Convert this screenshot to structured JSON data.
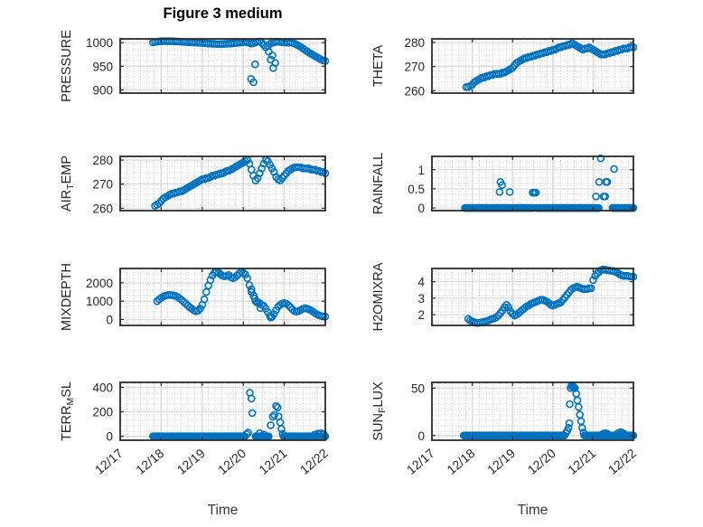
{
  "figure": {
    "title": "Figure 3 medium",
    "xlabel": "Time",
    "x_tick_labels": [
      "12/17",
      "12/18",
      "12/19",
      "12/20",
      "12/21",
      "12/22"
    ],
    "marker_color": "#0072BD",
    "axis_color": "#2b2b2b",
    "tick_label_color": "#262626",
    "grid_color": "#d9d9d9",
    "minor_grid_color": "#cacaca",
    "background": "#ffffff"
  },
  "chart_data": [
    {
      "type": "scatter",
      "name": "pressure",
      "ylabel": "PRESSURE",
      "ylabel_parts": [
        [
          "PRESSURE",
          false
        ]
      ],
      "yticks": [
        900,
        950,
        1000
      ],
      "ylim": [
        893,
        1008
      ],
      "xlim_days": [
        0,
        5
      ],
      "band": {
        "x0": 0.8,
        "dx": 0.05,
        "y": [
          1000.5,
          1001.5,
          1002,
          1002.5,
          1003,
          1003,
          1003,
          1003,
          1003,
          1003,
          1003,
          1002.5,
          1002.5,
          1002,
          1002,
          1001.5,
          1001.5,
          1001,
          1001,
          1000.5,
          1000.5,
          1000,
          1000,
          999.5,
          999.5,
          999,
          998.5,
          998,
          998,
          997.5,
          997.5,
          997,
          997,
          997,
          997,
          997.5,
          997.5,
          998,
          998,
          998.5,
          999,
          999.5,
          1000,
          1000.5,
          1001,
          1001.5,
          1001,
          999.5,
          998,
          999,
          1001,
          1002,
          1002.5,
          1000,
          995,
          990,
          993,
          997,
          1000,
          1001,
          1001.5,
          1002,
          1001.5,
          1001,
          1000.5,
          1000.5,
          1000,
          1000,
          999.5,
          998,
          996,
          993.5,
          991,
          988,
          985,
          982,
          979,
          976.5,
          974,
          971.5,
          969,
          966.5,
          964,
          962,
          961
        ]
      },
      "zero_runs": [],
      "extra": [
        [
          3.19,
          923
        ],
        [
          3.25,
          916
        ],
        [
          3.29,
          954
        ],
        [
          3.62,
          981
        ],
        [
          3.67,
          964
        ],
        [
          3.71,
          973
        ],
        [
          3.73,
          946
        ],
        [
          3.78,
          957
        ]
      ]
    },
    {
      "type": "scatter",
      "name": "theta",
      "ylabel": "THETA",
      "ylabel_parts": [
        [
          "THETA",
          false
        ]
      ],
      "yticks": [
        260,
        270,
        280
      ],
      "ylim": [
        259,
        281.5
      ],
      "xlim_days": [
        0,
        5
      ],
      "band": {
        "x0": 0.85,
        "dx": 0.05,
        "y": [
          261.5,
          261.5,
          262,
          262.5,
          263.5,
          264,
          264.5,
          265,
          265.5,
          265.5,
          266,
          266,
          266.5,
          266.5,
          267,
          267,
          267,
          267,
          267.5,
          267.5,
          268,
          268.5,
          269,
          269.5,
          270.5,
          271.5,
          272,
          272.5,
          273,
          273.5,
          273.5,
          274,
          274,
          274.5,
          274.5,
          275,
          275,
          275.5,
          275.5,
          276,
          276,
          276.5,
          276.5,
          277,
          277,
          277.5,
          278,
          278,
          278.5,
          278.5,
          279,
          279,
          279.5,
          279.5,
          279,
          278.5,
          278,
          277.5,
          277,
          277.5,
          277.5,
          278,
          277.5,
          277,
          276.5,
          276,
          275.5,
          275,
          275,
          275,
          275.5,
          275.5,
          276,
          276,
          276.5,
          276.5,
          277,
          277,
          277.5,
          277.5,
          277.5,
          278,
          278,
          278
        ]
      },
      "zero_runs": [],
      "extra": []
    },
    {
      "type": "scatter",
      "name": "air_temp",
      "ylabel": "AIR_TEMP",
      "ylabel_parts": [
        [
          "AIR",
          false
        ],
        [
          "T",
          true
        ],
        [
          "EMP",
          false
        ]
      ],
      "yticks": [
        260,
        270,
        280
      ],
      "ylim": [
        259,
        281.5
      ],
      "xlim_days": [
        0,
        5
      ],
      "band": {
        "x0": 0.85,
        "dx": 0.05,
        "y": [
          261,
          261.5,
          262,
          263,
          264,
          264.5,
          265,
          265.5,
          266,
          266,
          266.5,
          266.5,
          267,
          267,
          267.5,
          268,
          268.5,
          269,
          269.5,
          270,
          270.5,
          271,
          271.5,
          272,
          272,
          272.5,
          272.5,
          273,
          273.5,
          273.5,
          274,
          274,
          274.5,
          274.5,
          275,
          275.5,
          275.5,
          276,
          276.5,
          277,
          277.5,
          278,
          278.5,
          279,
          279.5,
          280,
          278.5,
          276,
          273.5,
          271.5,
          272.5,
          274.5,
          276.5,
          278.5,
          280,
          279.5,
          278,
          276.5,
          275,
          273,
          272,
          271.5,
          272.5,
          273.5,
          274.5,
          275.5,
          276,
          276.5,
          277,
          277,
          277,
          277,
          276.5,
          276.5,
          276.5,
          276.5,
          276,
          276,
          276,
          275.5,
          275.5,
          275,
          275,
          274.5
        ]
      },
      "zero_runs": [],
      "extra": []
    },
    {
      "type": "scatter",
      "name": "rainfall",
      "ylabel": "RAINFALL",
      "ylabel_parts": [
        [
          "RAINFALL",
          false
        ]
      ],
      "yticks": [
        0,
        0.5,
        1
      ],
      "ylim": [
        -0.07,
        1.35
      ],
      "xlim_days": [
        0,
        5
      ],
      "band": null,
      "zero_runs": [
        [
          0.82,
          2.5
        ],
        [
          2.58,
          4.15
        ],
        [
          4.48,
          5.0
        ]
      ],
      "extra": [
        [
          1.68,
          0.42
        ],
        [
          1.7,
          0.68
        ],
        [
          1.74,
          0.6
        ],
        [
          1.93,
          0.42
        ],
        [
          2.5,
          0.4
        ],
        [
          2.54,
          0.4
        ],
        [
          2.58,
          0.4
        ],
        [
          4.07,
          0.3
        ],
        [
          4.15,
          0.68
        ],
        [
          4.19,
          1.3
        ],
        [
          4.26,
          0.3
        ],
        [
          4.3,
          0.3
        ],
        [
          4.32,
          0.68
        ],
        [
          4.35,
          0.68
        ],
        [
          4.52,
          1.02
        ]
      ]
    },
    {
      "type": "scatter",
      "name": "mixdepth",
      "ylabel": "MIXDEPTH",
      "ylabel_parts": [
        [
          "MIXDEPTH",
          false
        ]
      ],
      "yticks": [
        0,
        1000,
        2000
      ],
      "ylim": [
        -320,
        2780
      ],
      "xlim_days": [
        0,
        5
      ],
      "band": {
        "x0": 0.9,
        "dx": 0.05,
        "y": [
          1000,
          1100,
          1180,
          1250,
          1300,
          1330,
          1340,
          1330,
          1320,
          1280,
          1230,
          1150,
          1060,
          960,
          860,
          760,
          660,
          580,
          500,
          450,
          480,
          600,
          800,
          1100,
          1500,
          1850,
          2150,
          2400,
          2550,
          2600,
          2550,
          2450,
          2380,
          2350,
          2380,
          2420,
          2300,
          2250,
          2300,
          2400,
          2500,
          2600,
          2550,
          2450,
          2250,
          1870,
          1500,
          1300,
          1000,
          950,
          900,
          800,
          745,
          590,
          400,
          200,
          150,
          300,
          510,
          700,
          800,
          870,
          900,
          860,
          780,
          670,
          550,
          460,
          430,
          460,
          520,
          580,
          620,
          600,
          560,
          500,
          430,
          350,
          280,
          230,
          190,
          170,
          160
        ]
      },
      "zero_runs": [],
      "extra": [
        [
          3.2,
          1650
        ],
        [
          3.28,
          1150
        ],
        [
          3.34,
          920
        ],
        [
          3.42,
          620
        ],
        [
          3.67,
          110
        ]
      ]
    },
    {
      "type": "scatter",
      "name": "h2omixra",
      "ylabel": "H2OMIXRA",
      "ylabel_parts": [
        [
          "H2OMIXRA",
          false
        ]
      ],
      "yticks": [
        2,
        3,
        4
      ],
      "ylim": [
        1.35,
        4.8
      ],
      "xlim_days": [
        0,
        5
      ],
      "band": {
        "x0": 0.9,
        "dx": 0.05,
        "y": [
          1.75,
          1.65,
          1.6,
          1.55,
          1.5,
          1.5,
          1.52,
          1.55,
          1.58,
          1.6,
          1.65,
          1.7,
          1.75,
          1.78,
          1.85,
          1.95,
          2.1,
          2.25,
          2.45,
          2.6,
          2.45,
          2.2,
          2.05,
          1.95,
          2.0,
          2.1,
          2.2,
          2.3,
          2.4,
          2.5,
          2.55,
          2.65,
          2.7,
          2.75,
          2.8,
          2.85,
          2.9,
          2.9,
          2.85,
          2.8,
          2.7,
          2.6,
          2.55,
          2.6,
          2.65,
          2.7,
          2.75,
          2.9,
          3.05,
          3.2,
          3.35,
          3.5,
          3.6,
          3.65,
          3.7,
          3.65,
          3.6,
          3.55,
          3.55,
          3.55,
          3.6,
          3.6,
          4.1,
          4.35,
          4.5,
          4.6,
          4.7,
          4.75,
          4.72,
          4.7,
          4.68,
          4.65,
          4.65,
          4.6,
          4.55,
          4.45,
          4.4,
          4.35,
          4.35,
          4.35,
          4.32,
          4.3,
          4.3
        ]
      },
      "zero_runs": [],
      "extra": []
    },
    {
      "type": "scatter",
      "name": "terr_msl",
      "ylabel": "TERR_MSL",
      "ylabel_parts": [
        [
          "TERR",
          false
        ],
        [
          "M",
          true
        ],
        [
          "SL",
          false
        ]
      ],
      "yticks": [
        0,
        200,
        400
      ],
      "ylim": [
        -32,
        440
      ],
      "xlim_days": [
        0,
        5
      ],
      "band": null,
      "zero_runs": [
        [
          0.8,
          3.05
        ],
        [
          3.3,
          3.62
        ],
        [
          3.98,
          5.0
        ]
      ],
      "extra": [
        [
          3.08,
          18
        ],
        [
          3.12,
          30
        ],
        [
          3.16,
          356
        ],
        [
          3.2,
          308
        ],
        [
          3.22,
          190
        ],
        [
          3.4,
          25
        ],
        [
          3.5,
          15
        ],
        [
          3.67,
          90
        ],
        [
          3.72,
          160
        ],
        [
          3.76,
          175
        ],
        [
          3.8,
          247
        ],
        [
          3.84,
          235
        ],
        [
          3.86,
          162
        ],
        [
          3.9,
          114
        ],
        [
          3.93,
          60
        ],
        [
          3.96,
          20
        ],
        [
          4.75,
          15
        ],
        [
          4.82,
          22
        ],
        [
          4.9,
          25
        ],
        [
          4.96,
          18
        ]
      ]
    },
    {
      "type": "scatter",
      "name": "sun_flux",
      "ylabel": "SUN_FLUX",
      "ylabel_parts": [
        [
          "SUN",
          false
        ],
        [
          "F",
          true
        ],
        [
          "LUX",
          false
        ]
      ],
      "yticks": [
        0,
        50
      ],
      "ylim": [
        -5,
        56
      ],
      "xlim_days": [
        0,
        5
      ],
      "band": null,
      "zero_runs": [
        [
          0.79,
          3.3
        ],
        [
          3.78,
          5.0
        ]
      ],
      "extra": [
        [
          3.33,
          3
        ],
        [
          3.36,
          5
        ],
        [
          3.39,
          8
        ],
        [
          3.41,
          13
        ],
        [
          3.42,
          33
        ],
        [
          3.44,
          50
        ],
        [
          3.46,
          52
        ],
        [
          3.48,
          53
        ],
        [
          3.5,
          52
        ],
        [
          3.52,
          51
        ],
        [
          3.55,
          50
        ],
        [
          3.58,
          44
        ],
        [
          3.61,
          37
        ],
        [
          3.64,
          30
        ],
        [
          3.67,
          22
        ],
        [
          3.7,
          15
        ],
        [
          3.73,
          8
        ],
        [
          3.76,
          3
        ],
        [
          4.25,
          2
        ],
        [
          4.3,
          2.5
        ],
        [
          4.35,
          2
        ],
        [
          4.62,
          2.5
        ],
        [
          4.68,
          3.5
        ],
        [
          4.72,
          3
        ],
        [
          4.76,
          2
        ]
      ]
    }
  ]
}
